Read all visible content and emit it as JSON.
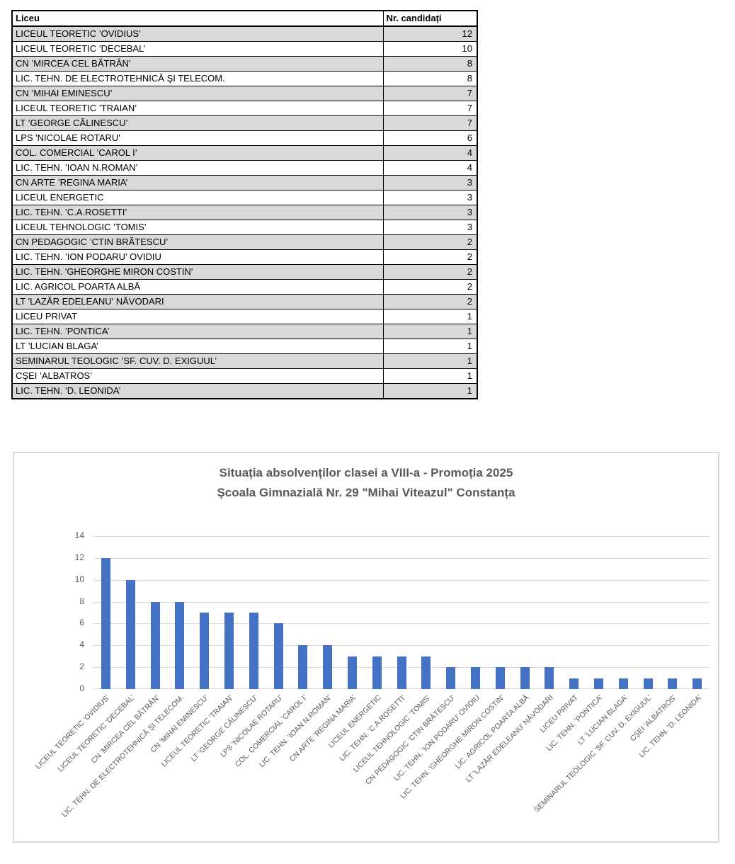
{
  "table": {
    "headers": [
      "Liceu",
      "Nr. candidați"
    ],
    "rows": [
      [
        "LICEUL TEORETIC ’OVIDIUS’",
        12
      ],
      [
        "LICEUL TEORETIC ’DECEBAL’",
        10
      ],
      [
        "CN ’MIRCEA CEL BĂTRÂN’",
        8
      ],
      [
        "LIC. TEHN. DE ELECTROTEHNICĂ ŞI TELECOM.",
        8
      ],
      [
        "CN ’MIHAI EMINESCU’",
        7
      ],
      [
        "LICEUL TEORETIC ’TRAIAN’",
        7
      ],
      [
        "LT ’GEORGE CĂLINESCU’",
        7
      ],
      [
        "LPS 'NICOLAE ROTARU'",
        6
      ],
      [
        "COL. COMERCIAL ’CAROL I’",
        4
      ],
      [
        "LIC. TEHN. ’IOAN N.ROMAN’",
        4
      ],
      [
        "CN ARTE ’REGINA MARIA’",
        3
      ],
      [
        "LICEUL ENERGETIC",
        3
      ],
      [
        "LIC. TEHN. ’C.A.ROSETTI’",
        3
      ],
      [
        "LICEUL TEHNOLOGIC ’TOMIS’",
        3
      ],
      [
        "CN PEDAGOGIC ’CTIN BRĂTESCU’",
        2
      ],
      [
        "LIC. TEHN. ’ION PODARU’ OVIDIU",
        2
      ],
      [
        "LIC. TEHN. 'GHEORGHE MIRON COSTIN'",
        2
      ],
      [
        "LIC. AGRICOL POARTA ALBĂ",
        2
      ],
      [
        "LT 'LAZĂR EDELEANU' NĂVODARI",
        2
      ],
      [
        "LICEU PRIVAT",
        1
      ],
      [
        "LIC. TEHN. ’PONTICA’",
        1
      ],
      [
        "LT ’LUCIAN BLAGA’",
        1
      ],
      [
        "SEMINARUL TEOLOGIC ’SF. CUV. D. EXIGUUL’",
        1
      ],
      [
        "CŞEI ’ALBATROS’",
        1
      ],
      [
        "LIC. TEHN. ’D. LEONIDA’",
        1
      ]
    ]
  },
  "chart_data": {
    "type": "bar",
    "title_line1": "Situația absolvenților clasei a VIII-a - Promoția 2025",
    "title_line2": "Școala Gimnazială Nr. 29 \"Mihai Viteazul\" Constanța",
    "categories": [
      "LICEUL TEORETIC ’OVIDIUS’",
      "LICEUL TEORETIC ’DECEBAL’",
      "CN ’MIRCEA CEL BĂTRÂN’",
      "LIC. TEHN. DE ELECTROTEHNICĂ ŞI TELECOM.",
      "CN ’MIHAI EMINESCU’",
      "LICEUL TEORETIC ’TRAIAN’",
      "LT ’GEORGE CĂLINESCU’",
      "LPS 'NICOLAE ROTARU'",
      "COL. COMERCIAL ’CAROL I’",
      "LIC. TEHN. ’IOAN N.ROMAN’",
      "CN ARTE ’REGINA MARIA’",
      "LICEUL ENERGETIC",
      "LIC. TEHN. ’C.A.ROSETTI’",
      "LICEUL TEHNOLOGIC ’TOMIS’",
      "CN PEDAGOGIC ’CTIN BRĂTESCU’",
      "LIC. TEHN. ’ION PODARU’ OVIDIU",
      "LIC. TEHN. 'GHEORGHE MIRON COSTIN'",
      "LIC. AGRICOL POARTA ALBĂ",
      "LT 'LAZĂR EDELEANU' NĂVODARI",
      "LICEU PRIVAT",
      "LIC. TEHN. ’PONTICA’",
      "LT ’LUCIAN BLAGA’",
      "SEMINARUL TEOLOGIC ’SF. CUV. D. EXIGUUL’",
      "CŞEI ’ALBATROS’",
      "LIC. TEHN. ’D. LEONIDA’"
    ],
    "values": [
      12,
      10,
      8,
      8,
      7,
      7,
      7,
      6,
      4,
      4,
      3,
      3,
      3,
      3,
      2,
      2,
      2,
      2,
      2,
      1,
      1,
      1,
      1,
      1,
      1
    ],
    "xlabel": "",
    "ylabel": "",
    "ylim": [
      0,
      14
    ],
    "yticks": [
      0,
      2,
      4,
      6,
      8,
      10,
      12,
      14
    ],
    "grid": true,
    "legend": "none",
    "bar_color": "#4472C4",
    "grid_color": "#D9D9D9",
    "text_color": "#595959"
  }
}
